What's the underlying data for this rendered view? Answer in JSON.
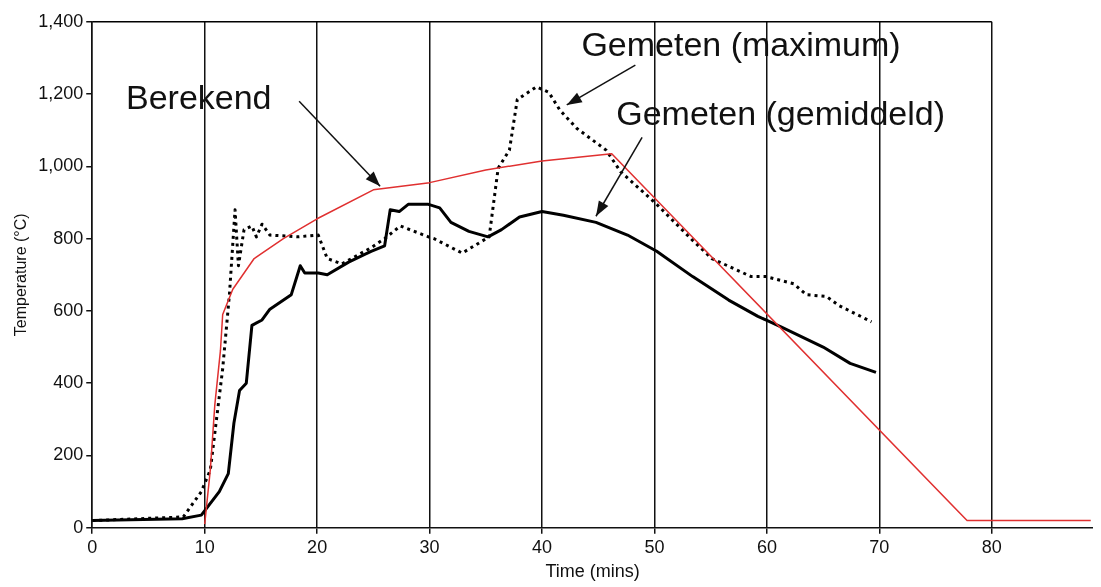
{
  "chart_data": {
    "type": "line",
    "xlabel": "Time (mins)",
    "ylabel": "Temperature (°C)",
    "xlim": [
      0,
      89
    ],
    "xticks": [
      0,
      10,
      20,
      30,
      40,
      50,
      60,
      70,
      80
    ],
    "ylim": [
      0,
      1400
    ],
    "yticks": [
      0,
      200,
      400,
      600,
      {
        "value": 800,
        "label": "800"
      },
      {
        "value": 1000,
        "label": "1,000"
      },
      {
        "value": 1200,
        "label": "1,200"
      },
      {
        "value": 1400,
        "label": "1,400"
      }
    ],
    "grid": "x",
    "legend": false,
    "marker": "none",
    "series": [
      {
        "name": "Berekend",
        "color": "#e03030",
        "line_style": "solid",
        "x": [
          10,
          10.5,
          10.9,
          11.4,
          11.6,
          12.5,
          14.4,
          17,
          20,
          25,
          30,
          35,
          40,
          46.2,
          77.8,
          88.8
        ],
        "values": [
          10,
          160,
          340,
          490,
          590,
          660,
          745,
          800,
          855,
          935,
          955,
          990,
          1015,
          1035,
          20,
          20
        ]
      },
      {
        "name": "Gemeten (maximum)",
        "color": "#000000",
        "line_style": "dotted",
        "x": [
          0,
          8.1,
          9.7,
          10.5,
          11.6,
          12.2,
          12.7,
          13.0,
          13.5,
          14.2,
          14.6,
          15.1,
          15.8,
          18.3,
          20.1,
          20.9,
          22.2,
          24.8,
          26.0,
          27.4,
          29.9,
          30.4,
          32.9,
          35.3,
          36.1,
          37.1,
          37.8,
          39.5,
          40.6,
          41.6,
          43.1,
          45.7,
          47.0,
          50.2,
          53.4,
          55.1,
          58.6,
          59.9,
          62.4,
          63.5,
          65.3,
          66.4,
          69.3
        ],
        "values": [
          20,
          30,
          100,
          160,
          440,
          645,
          880,
          725,
          825,
          835,
          805,
          840,
          810,
          805,
          810,
          745,
          730,
          775,
          800,
          835,
          805,
          800,
          760,
          805,
          995,
          1045,
          1185,
          1220,
          1205,
          1155,
          1105,
          1045,
          985,
          895,
          795,
          745,
          695,
          695,
          675,
          645,
          640,
          615,
          570
        ]
      },
      {
        "name": "Gemeten (gemiddeld)",
        "color": "#000000",
        "line_style": "solid",
        "x": [
          0,
          8,
          9.7,
          11.3,
          12.1,
          12.6,
          13.1,
          13.7,
          14.2,
          15.1,
          15.8,
          17.7,
          18.5,
          18.9,
          20.1,
          20.9,
          22.8,
          24.8,
          26.0,
          26.5,
          27.3,
          28.1,
          29.9,
          30.9,
          31.9,
          33.5,
          35.2,
          36.4,
          38.0,
          40.0,
          41.9,
          44.8,
          47.6,
          50.2,
          53.4,
          56.6,
          59.2,
          59.9,
          61.3,
          65.0,
          67.4,
          69.7
        ],
        "values": [
          20,
          25,
          35,
          100,
          150,
          290,
          380,
          400,
          560,
          575,
          605,
          645,
          725,
          705,
          705,
          700,
          735,
          765,
          780,
          880,
          875,
          895,
          895,
          885,
          845,
          820,
          805,
          825,
          860,
          875,
          865,
          845,
          810,
          765,
          695,
          630,
          585,
          575,
          555,
          500,
          455,
          430
        ]
      }
    ]
  }
}
